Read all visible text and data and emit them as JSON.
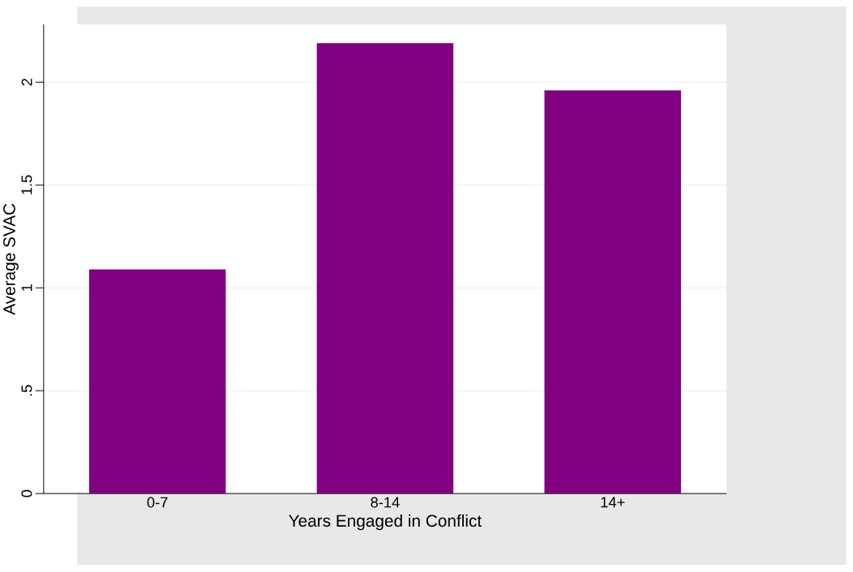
{
  "chart_data": {
    "type": "bar",
    "xlabel": "Years Engaged in Conflict",
    "ylabel": "Average SVAC",
    "categories": [
      "0-7",
      "8-14",
      "14+"
    ],
    "values": [
      1.09,
      2.19,
      1.96
    ],
    "color": "#800080",
    "ylim": [
      0,
      2.28
    ],
    "yticks": [
      0,
      {
        "value": 0.5,
        "label": ".5"
      },
      1,
      1.5,
      2
    ],
    "grid": "y"
  }
}
